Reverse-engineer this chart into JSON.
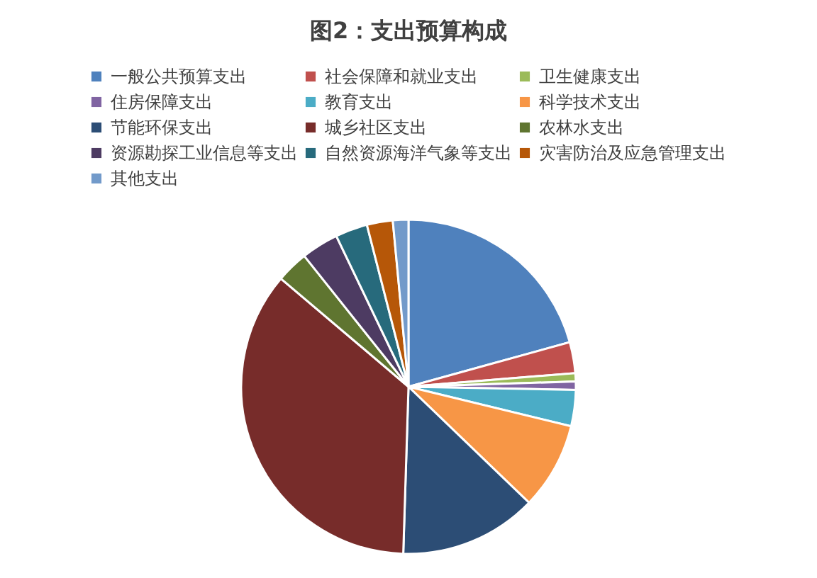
{
  "chart_data": {
    "type": "pie",
    "title": "图2：支出预算构成",
    "categories": [
      "一般公共预算支出",
      "社会保障和就业支出",
      "卫生健康支出",
      "住房保障支出",
      "教育支出",
      "科学技术支出",
      "节能环保支出",
      "城乡社区支出",
      "农林水支出",
      "资源勘探工业信息等支出",
      "自然资源海洋气象等支出",
      "灾害防治及应急管理支出",
      "其他支出"
    ],
    "values": [
      20.7,
      3.0,
      0.8,
      0.8,
      3.5,
      8.4,
      13.3,
      35.7,
      3.1,
      3.6,
      3.1,
      2.5,
      1.5
    ],
    "colors": [
      "#4f81bd",
      "#c0504d",
      "#9bbb59",
      "#8064a2",
      "#4bacc6",
      "#f79646",
      "#2c4d75",
      "#772c2a",
      "#5f7530",
      "#4d3b62",
      "#276a7c",
      "#b65708",
      "#729aca"
    ],
    "legend": "top"
  }
}
